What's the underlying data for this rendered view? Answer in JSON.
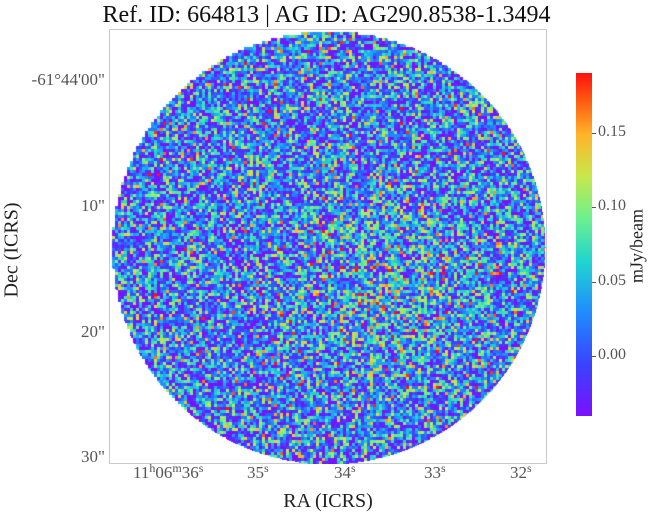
{
  "title": "Ref. ID: 664813 | AG ID: AG290.8538-1.3494",
  "chart_data": {
    "type": "heatmap",
    "title": "Ref. ID: 664813 | AG ID: AG290.8538-1.3494",
    "xlabel": "RA (ICRS)",
    "ylabel": "Dec (ICRS)",
    "x_ticks": [
      {
        "label": "11h06m36s"
      },
      {
        "label": "35s"
      },
      {
        "label": "34s"
      },
      {
        "label": "33s"
      },
      {
        "label": "32s"
      }
    ],
    "y_ticks": [
      {
        "label": "-61°44'00\""
      },
      {
        "label": "10\""
      },
      {
        "label": "20\""
      },
      {
        "label": "30\""
      }
    ],
    "colorbar": {
      "label": "mJy/beam",
      "range": [
        -0.04,
        0.19
      ],
      "ticks": [
        0.0,
        0.05,
        0.1,
        0.15
      ],
      "tick_labels": [
        "0.00",
        "0.05",
        "0.10",
        "0.15"
      ],
      "colormap": "rainbow"
    },
    "colors": {
      "low": "#7b10ff",
      "mid": "#20d5d0",
      "high": "#ff1010"
    }
  }
}
